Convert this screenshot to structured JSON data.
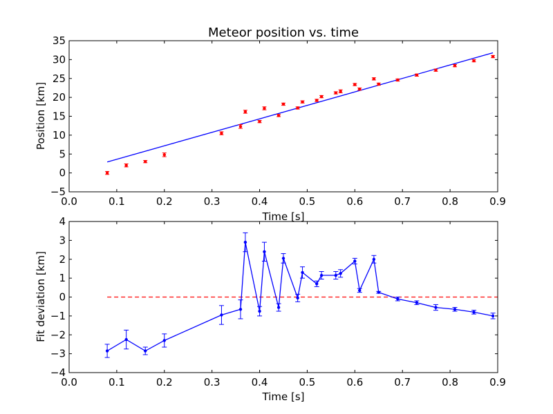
{
  "chart_data": [
    {
      "type": "scatter",
      "title": "Meteor position vs. time",
      "xlabel": "Time [s]",
      "ylabel": "Position [km]",
      "xlim": [
        0.0,
        0.9
      ],
      "ylim": [
        -5,
        35
      ],
      "xticks": [
        "0.0",
        "0.1",
        "0.2",
        "0.3",
        "0.4",
        "0.5",
        "0.6",
        "0.7",
        "0.8",
        "0.9"
      ],
      "yticks": [
        "−5",
        "0",
        "5",
        "10",
        "15",
        "20",
        "25",
        "30",
        "35"
      ],
      "grid": false,
      "series": [
        {
          "kind": "errorbar-points",
          "color": "#ff0000",
          "x": [
            0.08,
            0.12,
            0.16,
            0.2,
            0.32,
            0.36,
            0.37,
            0.4,
            0.41,
            0.44,
            0.45,
            0.48,
            0.49,
            0.52,
            0.53,
            0.56,
            0.57,
            0.6,
            0.61,
            0.64,
            0.65,
            0.69,
            0.73,
            0.77,
            0.81,
            0.85,
            0.89
          ],
          "y": [
            0.0,
            2.0,
            3.0,
            4.8,
            10.5,
            12.3,
            16.2,
            13.6,
            17.1,
            15.2,
            18.2,
            17.2,
            18.8,
            19.2,
            20.2,
            21.2,
            21.6,
            23.4,
            22.2,
            24.9,
            23.5,
            24.6,
            25.9,
            27.2,
            28.4,
            29.7,
            30.8
          ],
          "yerr": [
            0.4,
            0.4,
            0.3,
            0.5,
            0.4,
            0.5,
            0.4,
            0.3,
            0.4,
            0.3,
            0.3,
            0.3,
            0.3,
            0.3,
            0.3,
            0.3,
            0.4,
            0.3,
            0.3,
            0.3,
            0.3,
            0.3,
            0.3,
            0.3,
            0.3,
            0.3,
            0.3
          ]
        },
        {
          "kind": "fit-line",
          "color": "#0000ff",
          "x": [
            0.08,
            0.89
          ],
          "y": [
            2.9,
            31.8
          ]
        }
      ]
    },
    {
      "type": "line",
      "title": "",
      "xlabel": "Time [s]",
      "ylabel": "Fit deviation [km]",
      "xlim": [
        0.0,
        0.9
      ],
      "ylim": [
        -4,
        4
      ],
      "xticks": [
        "0.0",
        "0.1",
        "0.2",
        "0.3",
        "0.4",
        "0.5",
        "0.6",
        "0.7",
        "0.8",
        "0.9"
      ],
      "yticks": [
        "−4",
        "−3",
        "−2",
        "−1",
        "0",
        "1",
        "2",
        "3",
        "4"
      ],
      "grid": false,
      "series": [
        {
          "kind": "errorbar-line",
          "color": "#0000ff",
          "x": [
            0.08,
            0.12,
            0.16,
            0.2,
            0.32,
            0.36,
            0.37,
            0.4,
            0.41,
            0.44,
            0.45,
            0.48,
            0.49,
            0.52,
            0.53,
            0.56,
            0.57,
            0.6,
            0.61,
            0.64,
            0.65,
            0.69,
            0.73,
            0.77,
            0.81,
            0.85,
            0.89
          ],
          "y": [
            -2.85,
            -2.25,
            -2.85,
            -2.3,
            -0.95,
            -0.65,
            2.9,
            -0.75,
            2.4,
            -0.55,
            2.05,
            -0.05,
            1.3,
            0.7,
            1.15,
            1.15,
            1.25,
            1.9,
            0.35,
            2.0,
            0.25,
            -0.1,
            -0.3,
            -0.55,
            -0.65,
            -0.8,
            -1.0
          ],
          "yerr": [
            0.35,
            0.5,
            0.2,
            0.35,
            0.5,
            0.5,
            0.5,
            0.25,
            0.5,
            0.2,
            0.25,
            0.2,
            0.3,
            0.15,
            0.2,
            0.2,
            0.2,
            0.15,
            0.1,
            0.2,
            0.05,
            0.1,
            0.1,
            0.15,
            0.1,
            0.1,
            0.15
          ]
        },
        {
          "kind": "reference-line",
          "color": "#ff0000",
          "style": "dashed",
          "x": [
            0.08,
            0.9
          ],
          "y": [
            0,
            0
          ]
        }
      ]
    }
  ]
}
